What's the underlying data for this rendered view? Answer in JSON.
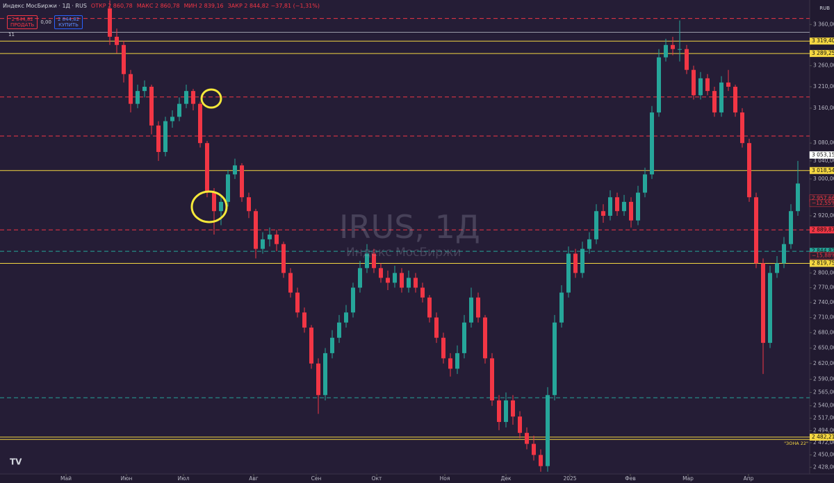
{
  "header": {
    "symbol": "Индекс МосБиржи · 1Д · RUS",
    "open": "ОТКР 2 860,78",
    "high": "МАКС 2 860,78",
    "low": "МИН 2 839,16",
    "close": "ЗАКР 2 844,82 −37,81 (−1,31%)",
    "sell_price": "2 844,82",
    "sell": "ПРОДАТЬ",
    "spread": "0,00",
    "buy_price": "2 844,82",
    "buy": "КУПИТЬ",
    "indicators": "11",
    "currency": "RUB"
  },
  "watermark": {
    "ticker": "IRUS, 1Д",
    "name": "Индекс МосБиржи"
  },
  "chart_data": {
    "type": "candlestick",
    "log_scale": true,
    "grid": false,
    "up_color": "#26a69a",
    "down_color": "#f23645",
    "xlim": [
      -15.8,
      100.7
    ],
    "xticks": [
      {
        "value": -6.3,
        "label": "Май"
      },
      {
        "value": 2.4,
        "label": "Июн"
      },
      {
        "value": 10.6,
        "label": "Июл"
      },
      {
        "value": 20.7,
        "label": "Авг"
      },
      {
        "value": 29.7,
        "label": "Сен"
      },
      {
        "value": 38.4,
        "label": "Окт"
      },
      {
        "value": 48.2,
        "label": "Ноя"
      },
      {
        "value": 57,
        "label": "Дек"
      },
      {
        "value": 66.2,
        "label": "2025"
      },
      {
        "value": 74.9,
        "label": "Фев"
      },
      {
        "value": 83.2,
        "label": "Мар"
      },
      {
        "value": 91.9,
        "label": "Апр"
      }
    ],
    "ylim": [
      2416,
      3421
    ],
    "yticks": [
      {
        "value": 3360,
        "label": "3 360,00"
      },
      {
        "value": 3260,
        "label": "3 260,00"
      },
      {
        "value": 3210,
        "label": "3 210,00"
      },
      {
        "value": 3160,
        "label": "3 160,00"
      },
      {
        "value": 3080,
        "label": "3 080,00"
      },
      {
        "value": 3040,
        "label": "3 040,00"
      },
      {
        "value": 3000,
        "label": "3 000,00"
      },
      {
        "value": 2920,
        "label": "2 920,00"
      },
      {
        "value": 2800,
        "label": "2 800,00"
      },
      {
        "value": 2770,
        "label": "2 770,00"
      },
      {
        "value": 2740,
        "label": "2 740,00"
      },
      {
        "value": 2710,
        "label": "2 710,00"
      },
      {
        "value": 2680,
        "label": "2 680,00"
      },
      {
        "value": 2650,
        "label": "2 650,00"
      },
      {
        "value": 2620,
        "label": "2 620,00"
      },
      {
        "value": 2590,
        "label": "2 590,00"
      },
      {
        "value": 2565,
        "label": "2 565,00"
      },
      {
        "value": 2540,
        "label": "2 540,00"
      },
      {
        "value": 2517,
        "label": "2 517,00"
      },
      {
        "value": 2494,
        "label": "2 494,00"
      },
      {
        "value": 2472,
        "label": "2 472,00"
      },
      {
        "value": 2450,
        "label": "2 450,00"
      },
      {
        "value": 2428,
        "label": "2 428,00"
      }
    ],
    "levels": [
      {
        "value": 3375,
        "color": "#f23645",
        "style": "dashed"
      },
      {
        "value": 3341,
        "color": "#9a9aa8",
        "style": "solid"
      },
      {
        "value": 3319.4,
        "label": "3 319,40",
        "color": "#f5d742",
        "style": "solid"
      },
      {
        "value": 3289.25,
        "label": "3 289,25",
        "color": "#f5d742",
        "style": "solid"
      },
      {
        "value": 3186,
        "color": "#f23645",
        "style": "dashed"
      },
      {
        "value": 3096,
        "color": "#f23645",
        "style": "dashed"
      },
      {
        "value": 3018.54,
        "label": "3 018,54",
        "color": "#f5d742",
        "style": "solid"
      },
      {
        "value": 2889.87,
        "label": "2 889,87",
        "color": "#f23645",
        "style": "dashed"
      },
      {
        "value": 2844.82,
        "label": "2 844,82",
        "color": "#26a69a",
        "style": "dashed"
      },
      {
        "value": 2819.75,
        "label": "2 819,75",
        "color": "#f5d742",
        "style": "solid"
      },
      {
        "value": 2555,
        "color": "#26a69a",
        "style": "dashed"
      },
      {
        "value": 2482.21,
        "label": "2 482,21",
        "color": "#f5d742",
        "style": "solid"
      },
      {
        "value": 2478,
        "color": "#f5d742",
        "style": "solid"
      }
    ],
    "price_labels": [
      {
        "value": 3053.15,
        "label": "3 053,15",
        "color": "#ffffff"
      },
      {
        "value": 2957.66,
        "label": "2 957,66",
        "color": "#f23645"
      },
      {
        "value": 2947,
        "label": "−12,55%",
        "color": "#f23645"
      },
      {
        "value": 2836,
        "label": "−15,88%",
        "color": "#f23645"
      }
    ],
    "zone_label": "\"ЗОНА 22\"",
    "candles": [
      [
        3400,
        3420,
        3310,
        3330
      ],
      [
        3330,
        3350,
        3290,
        3310
      ],
      [
        3310,
        3320,
        3220,
        3240
      ],
      [
        3240,
        3250,
        3150,
        3170
      ],
      [
        3170,
        3215,
        3160,
        3200
      ],
      [
        3200,
        3225,
        3185,
        3210
      ],
      [
        3210,
        3215,
        3100,
        3120
      ],
      [
        3120,
        3130,
        3040,
        3060
      ],
      [
        3060,
        3140,
        3050,
        3130
      ],
      [
        3130,
        3155,
        3115,
        3140
      ],
      [
        3140,
        3185,
        3130,
        3170
      ],
      [
        3170,
        3215,
        3160,
        3200
      ],
      [
        3200,
        3205,
        3155,
        3170
      ],
      [
        3170,
        3175,
        3070,
        3080
      ],
      [
        3080,
        3085,
        2960,
        2970
      ],
      [
        2970,
        2980,
        2880,
        2930
      ],
      [
        2930,
        2965,
        2900,
        2950
      ],
      [
        2950,
        3020,
        2940,
        3010
      ],
      [
        3010,
        3045,
        3000,
        3030
      ],
      [
        3030,
        3035,
        2950,
        2960
      ],
      [
        2960,
        2970,
        2915,
        2930
      ],
      [
        2930,
        2935,
        2830,
        2850
      ],
      [
        2850,
        2885,
        2840,
        2870
      ],
      [
        2870,
        2895,
        2855,
        2880
      ],
      [
        2880,
        2890,
        2845,
        2860
      ],
      [
        2860,
        2865,
        2790,
        2800
      ],
      [
        2800,
        2810,
        2750,
        2760
      ],
      [
        2760,
        2770,
        2710,
        2720
      ],
      [
        2720,
        2730,
        2680,
        2690
      ],
      [
        2690,
        2695,
        2610,
        2620
      ],
      [
        2620,
        2630,
        2525,
        2560
      ],
      [
        2560,
        2650,
        2550,
        2640
      ],
      [
        2640,
        2685,
        2630,
        2670
      ],
      [
        2670,
        2715,
        2660,
        2700
      ],
      [
        2700,
        2735,
        2690,
        2720
      ],
      [
        2720,
        2780,
        2710,
        2770
      ],
      [
        2770,
        2825,
        2760,
        2810
      ],
      [
        2810,
        2860,
        2800,
        2840
      ],
      [
        2840,
        2850,
        2800,
        2810
      ],
      [
        2810,
        2820,
        2780,
        2790
      ],
      [
        2790,
        2805,
        2765,
        2780
      ],
      [
        2780,
        2815,
        2770,
        2800
      ],
      [
        2800,
        2810,
        2760,
        2770
      ],
      [
        2770,
        2805,
        2760,
        2790
      ],
      [
        2790,
        2800,
        2760,
        2770
      ],
      [
        2770,
        2780,
        2740,
        2750
      ],
      [
        2750,
        2755,
        2700,
        2710
      ],
      [
        2710,
        2720,
        2660,
        2670
      ],
      [
        2670,
        2680,
        2620,
        2630
      ],
      [
        2630,
        2640,
        2595,
        2610
      ],
      [
        2610,
        2655,
        2600,
        2640
      ],
      [
        2640,
        2715,
        2630,
        2700
      ],
      [
        2700,
        2770,
        2690,
        2750
      ],
      [
        2750,
        2760,
        2700,
        2710
      ],
      [
        2710,
        2715,
        2620,
        2630
      ],
      [
        2630,
        2640,
        2540,
        2550
      ],
      [
        2550,
        2560,
        2495,
        2510
      ],
      [
        2510,
        2565,
        2500,
        2550
      ],
      [
        2550,
        2560,
        2505,
        2520
      ],
      [
        2520,
        2530,
        2480,
        2490
      ],
      [
        2490,
        2500,
        2460,
        2470
      ],
      [
        2470,
        2485,
        2440,
        2450
      ],
      [
        2450,
        2460,
        2420,
        2430
      ],
      [
        2430,
        2575,
        2420,
        2560
      ],
      [
        2560,
        2715,
        2550,
        2700
      ],
      [
        2700,
        2775,
        2690,
        2760
      ],
      [
        2760,
        2855,
        2750,
        2840
      ],
      [
        2840,
        2850,
        2790,
        2800
      ],
      [
        2800,
        2865,
        2790,
        2850
      ],
      [
        2850,
        2885,
        2840,
        2870
      ],
      [
        2870,
        2945,
        2860,
        2930
      ],
      [
        2930,
        2945,
        2905,
        2920
      ],
      [
        2920,
        2975,
        2910,
        2960
      ],
      [
        2960,
        2970,
        2920,
        2930
      ],
      [
        2930,
        2965,
        2920,
        2950
      ],
      [
        2950,
        2960,
        2895,
        2910
      ],
      [
        2910,
        2985,
        2900,
        2970
      ],
      [
        2970,
        3025,
        2960,
        3010
      ],
      [
        3010,
        3165,
        3000,
        3150
      ],
      [
        3150,
        3300,
        3140,
        3280
      ],
      [
        3280,
        3325,
        3270,
        3310
      ],
      [
        3310,
        3330,
        3285,
        3300
      ],
      [
        3300,
        3370,
        3270,
        3300
      ],
      [
        3300,
        3310,
        3240,
        3250
      ],
      [
        3250,
        3260,
        3180,
        3190
      ],
      [
        3190,
        3245,
        3180,
        3230
      ],
      [
        3230,
        3240,
        3190,
        3200
      ],
      [
        3200,
        3210,
        3140,
        3150
      ],
      [
        3150,
        3235,
        3140,
        3220
      ],
      [
        3220,
        3250,
        3200,
        3210
      ],
      [
        3210,
        3215,
        3140,
        3150
      ],
      [
        3150,
        3160,
        3070,
        3080
      ],
      [
        3080,
        3090,
        2950,
        2960
      ],
      [
        2960,
        2970,
        2810,
        2820
      ],
      [
        2820,
        2830,
        2600,
        2660
      ],
      [
        2660,
        2815,
        2650,
        2800
      ],
      [
        2800,
        2835,
        2790,
        2820
      ],
      [
        2820,
        2875,
        2810,
        2860
      ],
      [
        2860,
        2945,
        2850,
        2930
      ],
      [
        2930,
        3040,
        2920,
        2990
      ]
    ]
  }
}
